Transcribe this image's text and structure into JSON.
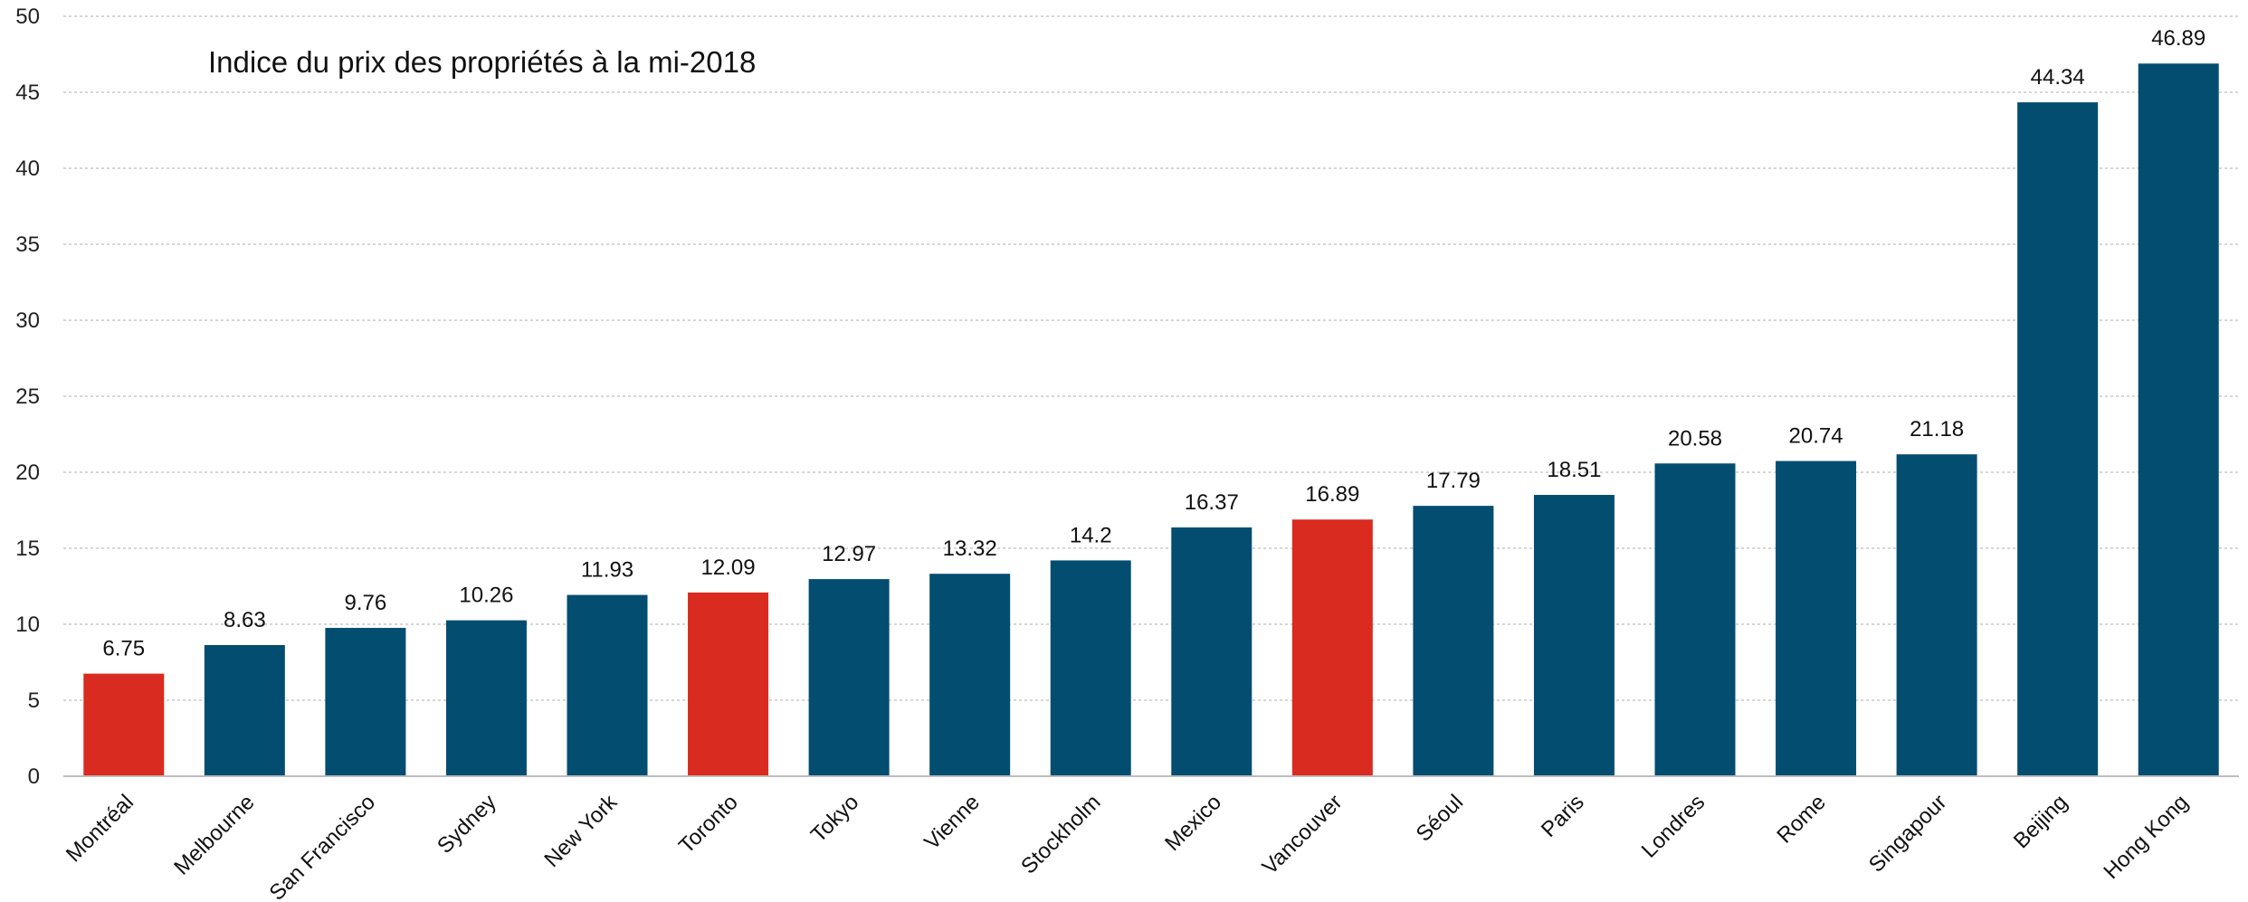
{
  "chart_data": {
    "type": "bar",
    "title": "Indice du prix des propriétés à la mi-2018",
    "xlabel": "",
    "ylabel": "",
    "ylim": [
      0,
      50
    ],
    "yticks": [
      0,
      5,
      10,
      15,
      20,
      25,
      30,
      35,
      40,
      45,
      50
    ],
    "grid": true,
    "categories": [
      "Montréal",
      "Melbourne",
      "San Francisco",
      "Sydney",
      "New York",
      "Toronto",
      "Tokyo",
      "Vienne",
      "Stockholm",
      "Mexico",
      "Vancouver",
      "Séoul",
      "Paris",
      "Londres",
      "Rome",
      "Singapour",
      "Beijing",
      "Hong Kong"
    ],
    "values": [
      6.75,
      8.63,
      9.76,
      10.26,
      11.93,
      12.09,
      12.97,
      13.32,
      14.2,
      16.37,
      16.89,
      17.79,
      18.51,
      20.58,
      20.74,
      21.18,
      44.34,
      46.89
    ],
    "highlighted": [
      "Montréal",
      "Toronto",
      "Vancouver"
    ],
    "colors": {
      "default": "#034e70",
      "highlight": "#d92b20"
    }
  }
}
